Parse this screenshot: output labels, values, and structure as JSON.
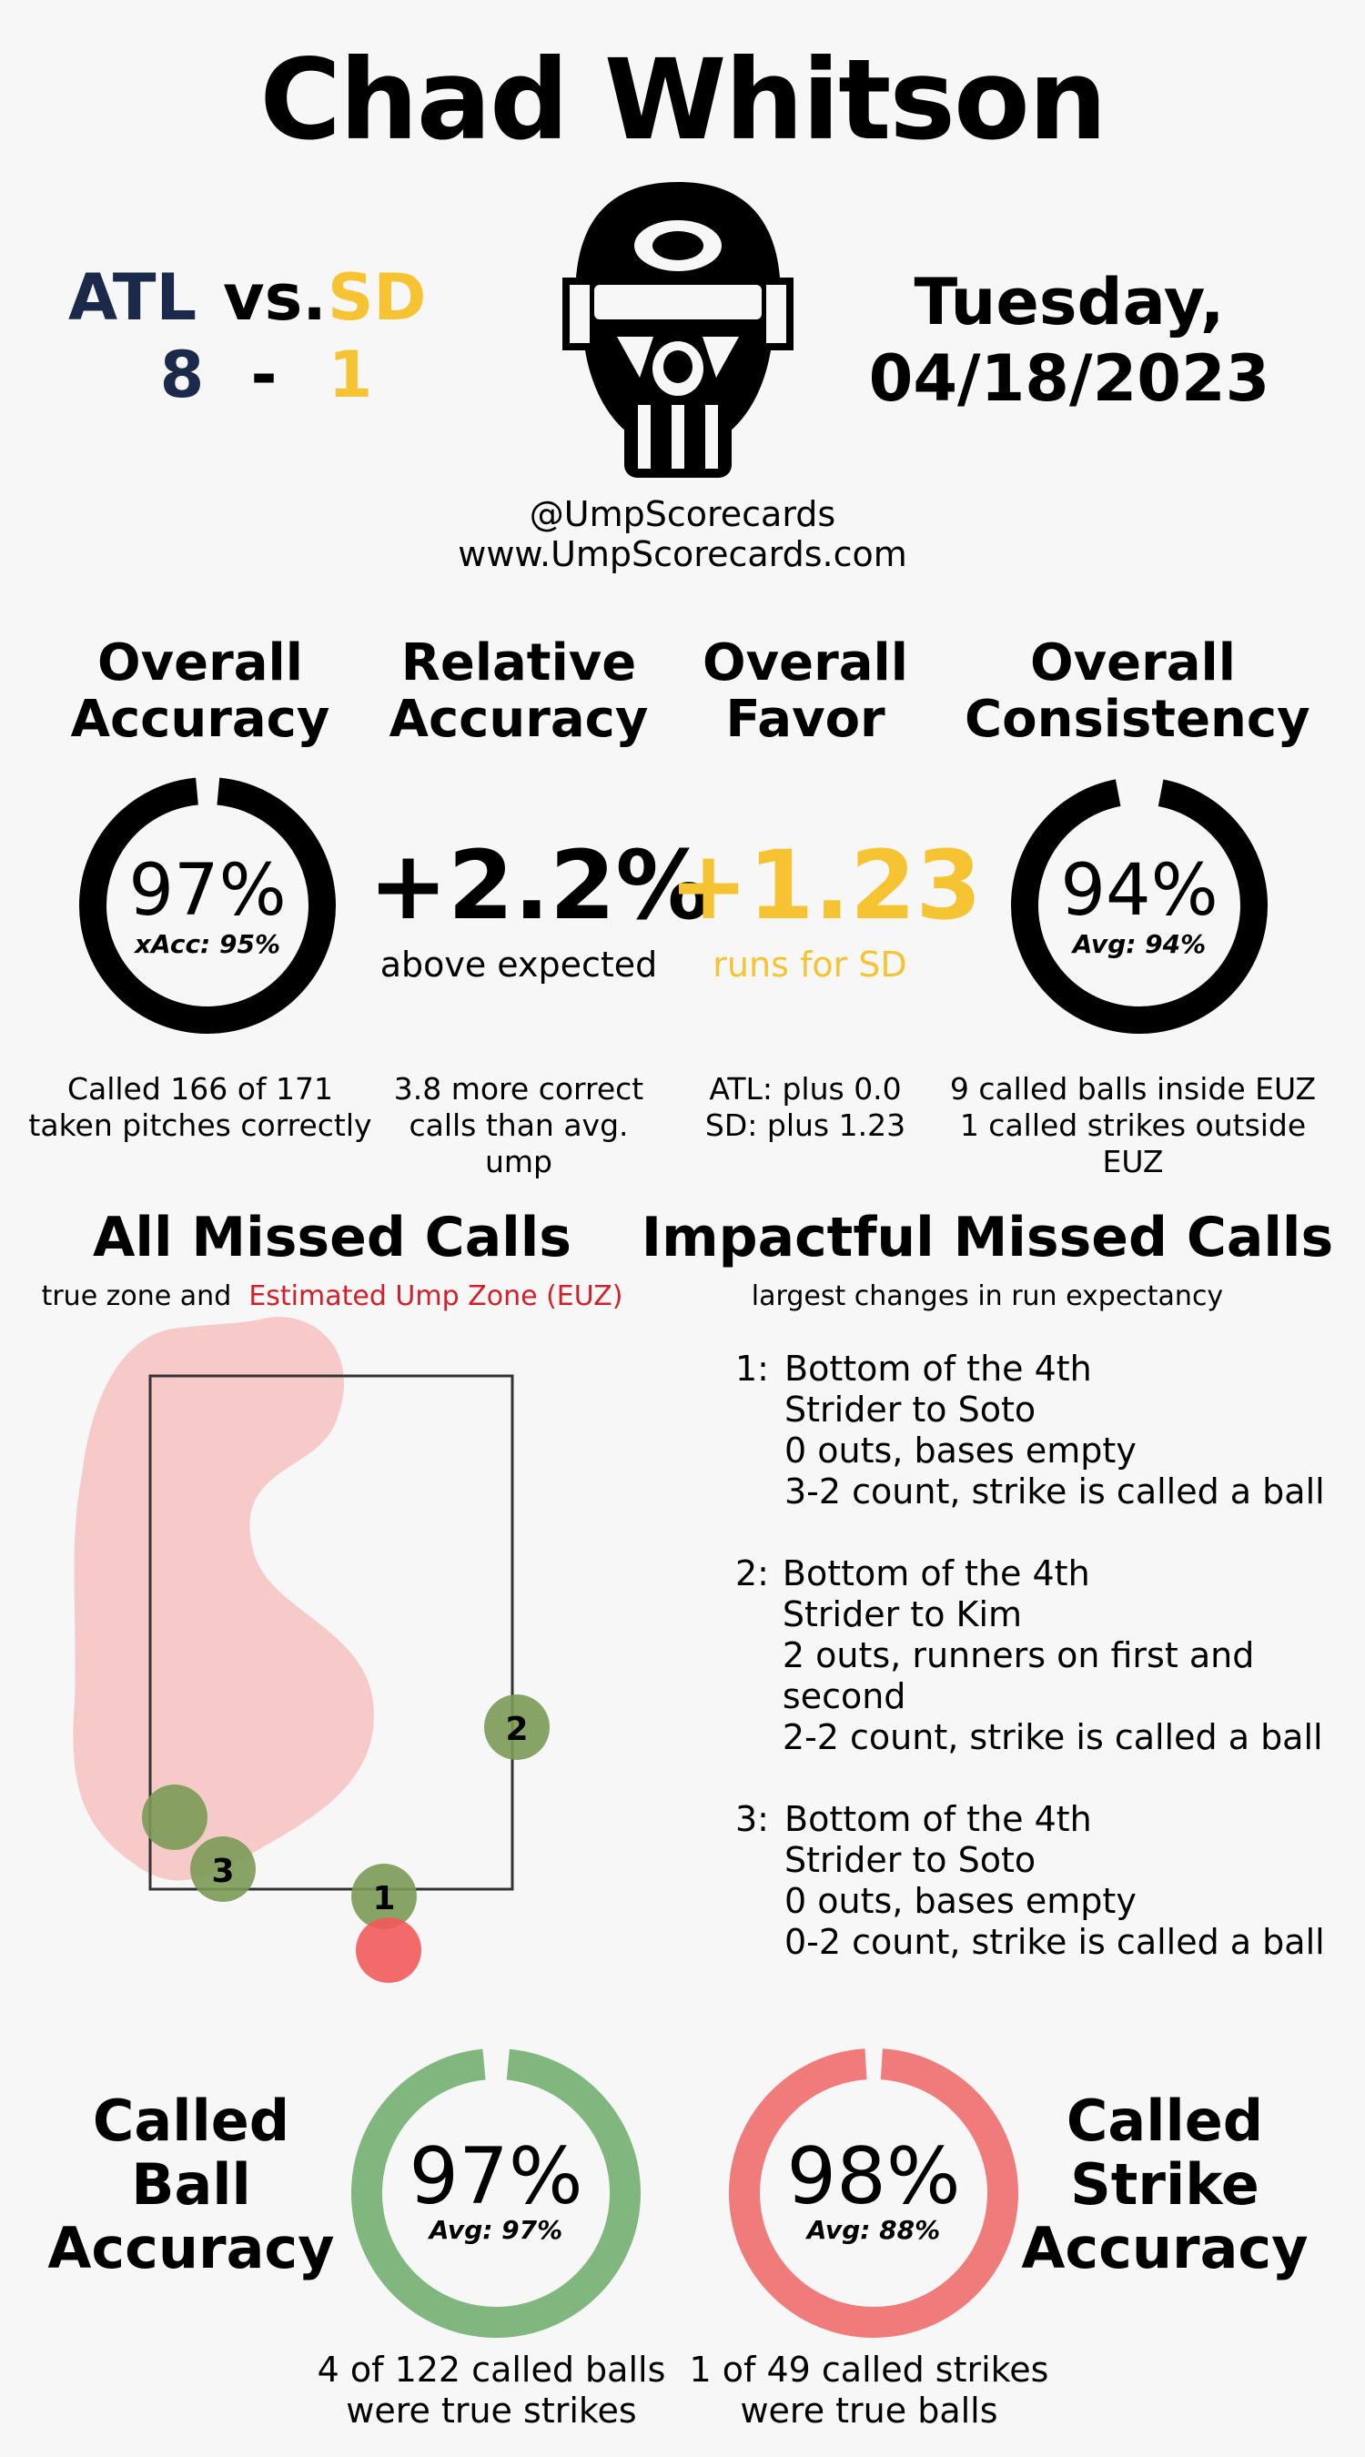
{
  "header": {
    "title": "Chad Whitson",
    "home_team": "ATL",
    "vs": "vs.",
    "away_team": "SD",
    "home_score": "8",
    "dash": "-",
    "away_score": "1",
    "date_line1": "Tuesday,",
    "date_line2": "04/18/2023",
    "handle": "@UmpScorecards",
    "website": "www.UmpScorecards.com"
  },
  "colors": {
    "navy": "#1b2a4a",
    "gold": "#f6c433",
    "green": "#7fb77e",
    "red": "#ef7b7b",
    "euz": "#d21f2a"
  },
  "stats": {
    "overall_accuracy": {
      "title1": "Overall",
      "title2": "Accuracy",
      "value": "97%",
      "sub": "xAcc: 95%",
      "fraction": 0.97,
      "foot1": "Called 166 of 171",
      "foot2": "taken pitches correctly"
    },
    "relative_accuracy": {
      "title1": "Relative",
      "title2": "Accuracy",
      "value": "+2.2%",
      "sub": "above expected",
      "foot1": "3.8 more correct",
      "foot2": "calls than avg. ump"
    },
    "overall_favor": {
      "title1": "Overall",
      "title2": "Favor",
      "value": "+1.23",
      "sub": "runs for SD",
      "foot1": "ATL: plus 0.0",
      "foot2": "SD: plus 1.23"
    },
    "overall_consistency": {
      "title1": "Overall",
      "title2": "Consistency",
      "value": "94%",
      "sub": "Avg: 94%",
      "fraction": 0.94,
      "foot1": "9 called balls inside EUZ",
      "foot2": "1 called strikes outside EUZ"
    }
  },
  "missed_calls": {
    "title": "All Missed Calls",
    "subtitle_plain": "true zone and",
    "subtitle_red": "Estimated Ump Zone (EUZ)",
    "markers": [
      {
        "label": "1",
        "type": "strike_called_ball"
      },
      {
        "label": "2",
        "type": "strike_called_ball"
      },
      {
        "label": "3",
        "type": "strike_called_ball"
      },
      {
        "label": "",
        "type": "strike_called_ball"
      },
      {
        "label": "",
        "type": "ball_called_strike"
      }
    ]
  },
  "impactful": {
    "title": "Impactful Missed Calls",
    "subtitle": "largest changes in run expectancy",
    "calls": [
      {
        "num": "1:",
        "inning": "Bottom of the 4th",
        "matchup": "Strider to Soto",
        "situation": "0 outs, bases empty",
        "count": "3-2 count, strike is called a ball"
      },
      {
        "num": "2:",
        "inning": "Bottom of the 4th",
        "matchup": "Strider to Kim",
        "situation": "2 outs, runners on first and second",
        "count": "2-2 count, strike is called a ball"
      },
      {
        "num": "3:",
        "inning": "Bottom of the 4th",
        "matchup": "Strider to Soto",
        "situation": "0 outs, bases empty",
        "count": "0-2 count, strike is called a ball"
      }
    ]
  },
  "called_ball": {
    "title1": "Called",
    "title2": "Ball",
    "title3": "Accuracy",
    "value": "97%",
    "sub": "Avg: 97%",
    "fraction": 0.97,
    "foot1": "4 of 122 called balls",
    "foot2": "were true strikes"
  },
  "called_strike": {
    "title1": "Called",
    "title2": "Strike",
    "title3": "Accuracy",
    "value": "98%",
    "sub": "Avg: 88%",
    "fraction": 0.98,
    "foot1": "1 of 49 called strikes",
    "foot2": "were true balls"
  }
}
